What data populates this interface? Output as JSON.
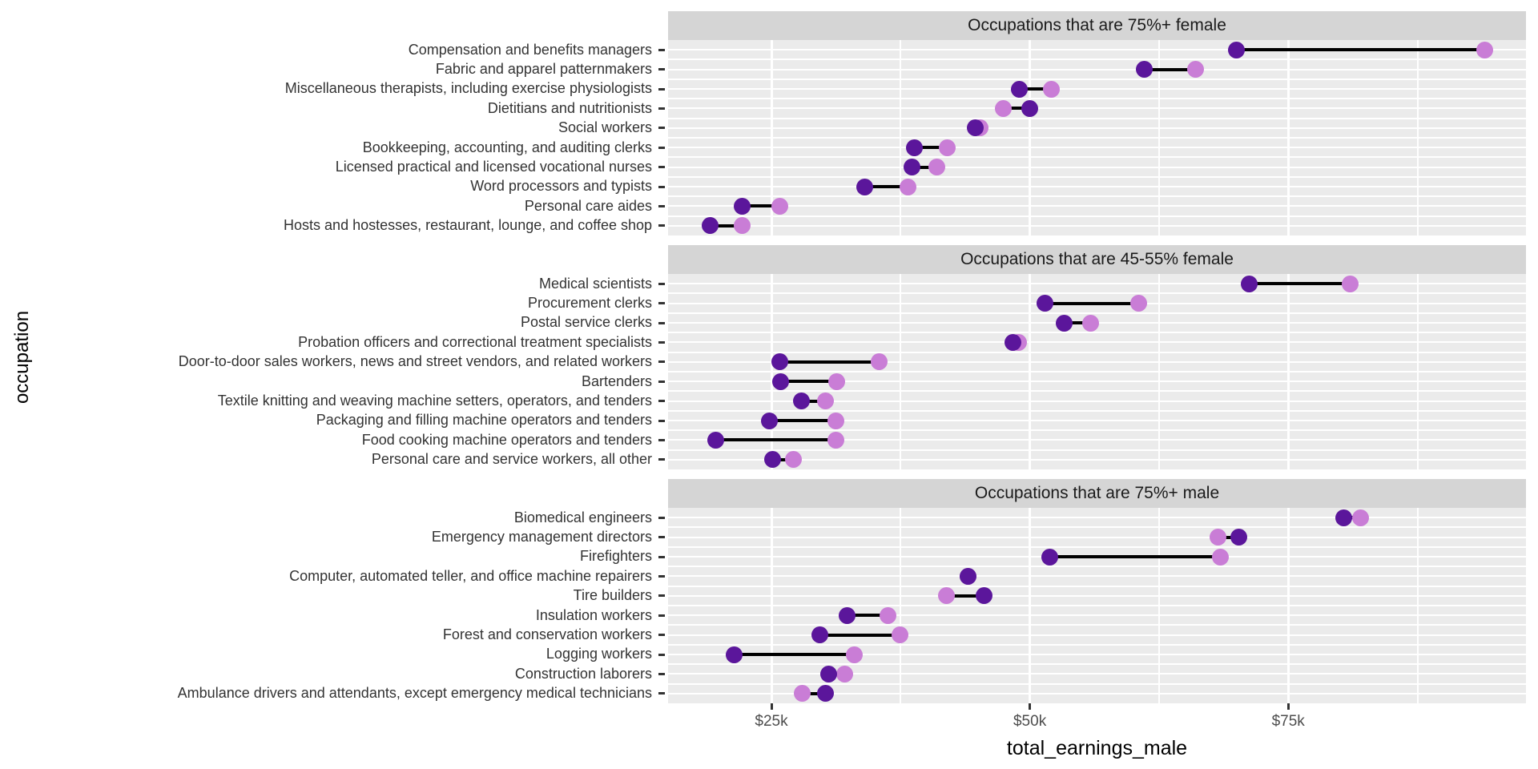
{
  "chart_data": {
    "type": "dumbbell",
    "x_axis": {
      "title": "total_earnings_male",
      "ticks": [
        {
          "label": "$25k",
          "value": 25000
        },
        {
          "label": "$50k",
          "value": 50000
        },
        {
          "label": "$75k",
          "value": 75000
        }
      ],
      "domain": [
        15000,
        98000
      ],
      "minor_gridlines": [
        37500,
        62500,
        87500
      ]
    },
    "y_axis": {
      "title": "occupation"
    },
    "legend": "none",
    "series_colors": {
      "dark": "#5b169b",
      "light": "#c97dd6"
    },
    "facets": [
      {
        "title": "Occupations that are 75%+ female",
        "rows": [
          {
            "occupation": "Compensation and benefits managers",
            "dark": 70000,
            "light": 94000
          },
          {
            "occupation": "Fabric and apparel patternmakers",
            "dark": 61100,
            "light": 66000
          },
          {
            "occupation": "Miscellaneous therapists, including exercise physiologists",
            "dark": 49000,
            "light": 52100
          },
          {
            "occupation": "Dietitians and nutritionists",
            "dark": 50000,
            "light": 47400
          },
          {
            "occupation": "Social workers",
            "dark": 44700,
            "light": 45200
          },
          {
            "occupation": "Bookkeeping, accounting, and auditing clerks",
            "dark": 38800,
            "light": 42000
          },
          {
            "occupation": "Licensed practical and licensed vocational nurses",
            "dark": 38600,
            "light": 41000
          },
          {
            "occupation": "Word processors and typists",
            "dark": 34000,
            "light": 38200
          },
          {
            "occupation": "Personal care aides",
            "dark": 22200,
            "light": 25800
          },
          {
            "occupation": "Hosts and hostesses, restaurant, lounge, and coffee shop",
            "dark": 19100,
            "light": 22200
          }
        ]
      },
      {
        "title": "Occupations that are 45-55% female",
        "rows": [
          {
            "occupation": "Medical scientists",
            "dark": 71200,
            "light": 81000
          },
          {
            "occupation": "Procurement clerks",
            "dark": 51500,
            "light": 60500
          },
          {
            "occupation": "Postal service clerks",
            "dark": 53300,
            "light": 55900
          },
          {
            "occupation": "Probation officers and correctional treatment specialists",
            "dark": 48400,
            "light": 48900
          },
          {
            "occupation": "Door-to-door sales workers, news and street vendors, and related workers",
            "dark": 25800,
            "light": 35400
          },
          {
            "occupation": "Bartenders",
            "dark": 25900,
            "light": 31300
          },
          {
            "occupation": "Textile knitting and weaving machine setters, operators, and tenders",
            "dark": 27900,
            "light": 30200
          },
          {
            "occupation": "Packaging and filling machine operators and tenders",
            "dark": 24800,
            "light": 31200
          },
          {
            "occupation": "Food cooking machine operators and tenders",
            "dark": 19600,
            "light": 31200
          },
          {
            "occupation": "Personal care and service workers, all other",
            "dark": 25100,
            "light": 27100
          }
        ]
      },
      {
        "title": "Occupations that are 75%+ male",
        "rows": [
          {
            "occupation": "Biomedical engineers",
            "dark": 80400,
            "light": 82000
          },
          {
            "occupation": "Emergency management directors",
            "dark": 70200,
            "light": 68200
          },
          {
            "occupation": "Firefighters",
            "dark": 51900,
            "light": 68400
          },
          {
            "occupation": "Computer, automated teller, and office machine repairers",
            "dark": 44000,
            "light": 44000
          },
          {
            "occupation": "Tire builders",
            "dark": 45600,
            "light": 41900
          },
          {
            "occupation": "Insulation workers",
            "dark": 32300,
            "light": 36300
          },
          {
            "occupation": "Forest and conservation workers",
            "dark": 29700,
            "light": 37400
          },
          {
            "occupation": "Logging workers",
            "dark": 21400,
            "light": 33000
          },
          {
            "occupation": "Construction laborers",
            "dark": 30500,
            "light": 32100
          },
          {
            "occupation": "Ambulance drivers and attendants, except emergency medical technicians",
            "dark": 30200,
            "light": 28000
          }
        ]
      }
    ],
    "panel_background": "#ebebeb",
    "strip_background": "#d5d5d5",
    "gridline_color": "#ffffff",
    "connector_color": "#000000"
  }
}
